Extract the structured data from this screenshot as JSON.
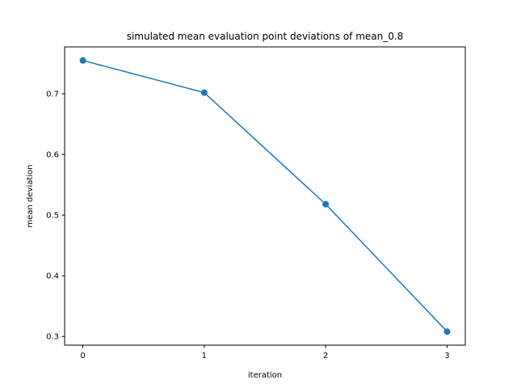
{
  "chart_data": {
    "type": "line",
    "title": "simulated mean evaluation point deviations of mean_0.8",
    "xlabel": "iteration",
    "ylabel": "mean deviation",
    "x": [
      0,
      1,
      2,
      3
    ],
    "series": [
      {
        "values": [
          0.755,
          0.702,
          0.518,
          0.308
        ]
      }
    ],
    "xticks": [
      "0",
      "1",
      "2",
      "3"
    ],
    "yticks": [
      "0.3",
      "0.4",
      "0.5",
      "0.6",
      "0.7"
    ],
    "xlim": [
      -0.15,
      3.15
    ],
    "ylim": [
      0.2856,
      0.7774
    ],
    "grid": false,
    "markers": true,
    "color": "#1f77b4"
  }
}
